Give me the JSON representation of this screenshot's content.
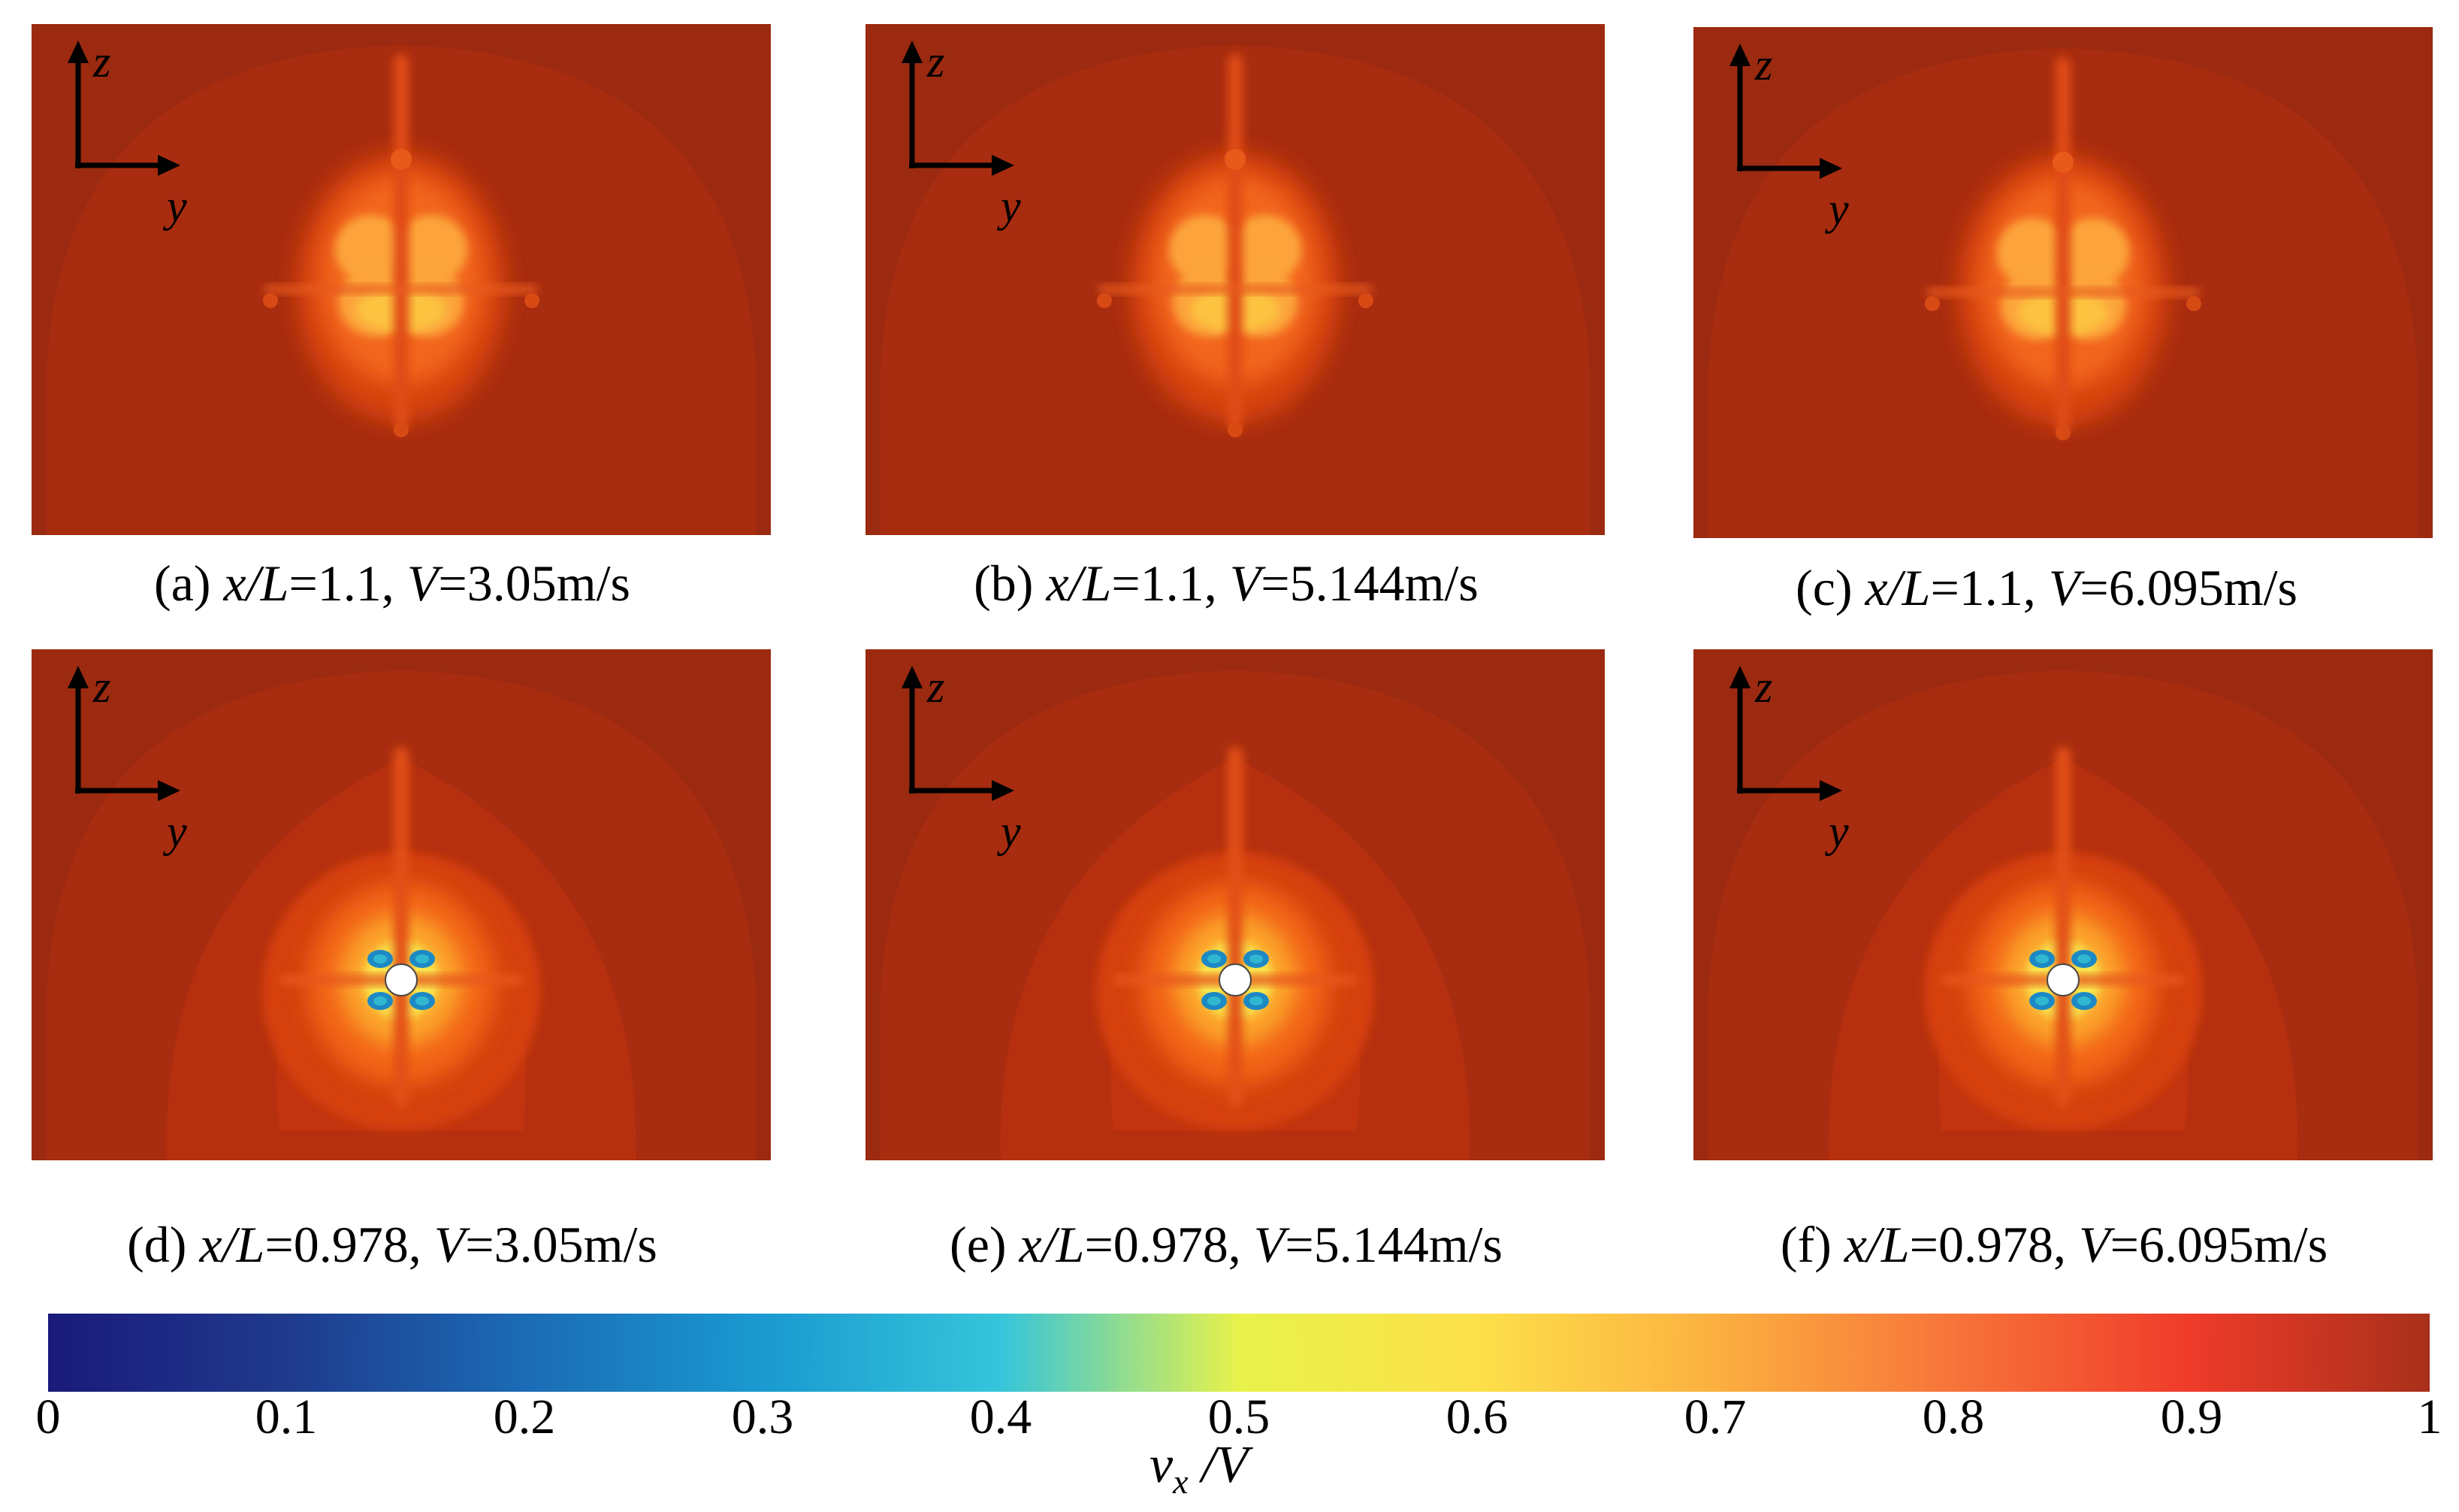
{
  "panels": [
    {
      "id": "a",
      "type": "wake",
      "cap_prefix": "(a) ",
      "cap_x": "x/L",
      "cap_xval": "=1.1, ",
      "cap_v": "V",
      "cap_vval": "=3.05m/s",
      "axis_z": "z",
      "axis_y": "y"
    },
    {
      "id": "b",
      "type": "wake",
      "cap_prefix": "(b) ",
      "cap_x": "x/L",
      "cap_xval": "=1.1, ",
      "cap_v": "V",
      "cap_vval": "=5.144m/s",
      "axis_z": "z",
      "axis_y": "y"
    },
    {
      "id": "c",
      "type": "wake",
      "cap_prefix": "(c) ",
      "cap_x": "x/L",
      "cap_xval": "=1.1, ",
      "cap_v": "V",
      "cap_vval": "=6.095m/s",
      "axis_z": "z",
      "axis_y": "y"
    },
    {
      "id": "d",
      "type": "prop",
      "cap_prefix": "(d) ",
      "cap_x": "x/L",
      "cap_xval": "=0.978, ",
      "cap_v": "V",
      "cap_vval": "=3.05m/s",
      "axis_z": "z",
      "axis_y": "y"
    },
    {
      "id": "e",
      "type": "prop",
      "cap_prefix": "(e) ",
      "cap_x": "x/L",
      "cap_xval": "=0.978, ",
      "cap_v": "V",
      "cap_vval": "=5.144m/s",
      "axis_z": "z",
      "axis_y": "y"
    },
    {
      "id": "f",
      "type": "prop",
      "cap_prefix": "(f) ",
      "cap_x": "x/L",
      "cap_xval": "=0.978, ",
      "cap_v": "V",
      "cap_vval": "=6.095m/s",
      "axis_z": "z",
      "axis_y": "y"
    }
  ],
  "colorbar": {
    "ticks": [
      "0",
      "0.1",
      "0.2",
      "0.3",
      "0.4",
      "0.5",
      "0.6",
      "0.7",
      "0.8",
      "0.9",
      "1"
    ],
    "tick_values": [
      0,
      0.1,
      0.2,
      0.3,
      0.4,
      0.5,
      0.6,
      0.7,
      0.8,
      0.9,
      1
    ],
    "label_main": "v",
    "label_sub": "x",
    "label_tail": " /V",
    "colors": [
      "#1a1a7a",
      "#1f3a8c",
      "#1b6bb5",
      "#1a9ad0",
      "#35c5da",
      "#e8f24a",
      "#fde04a",
      "#fbb040",
      "#f7743a",
      "#ef3b2a",
      "#a8301a"
    ]
  }
}
